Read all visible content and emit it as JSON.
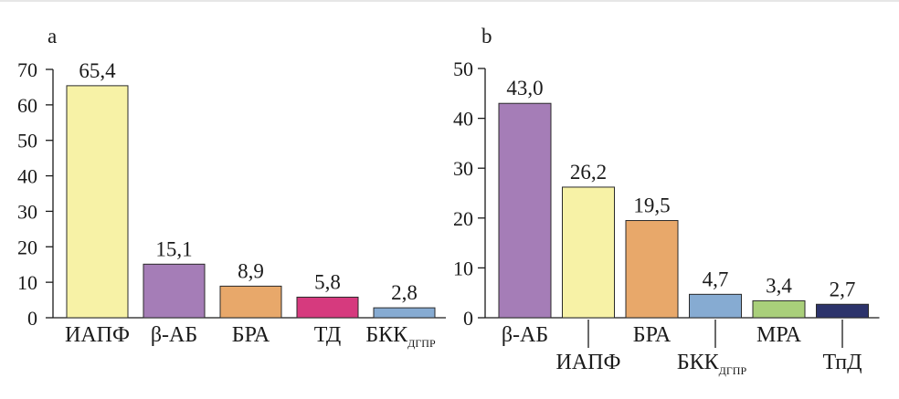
{
  "chart_data": [
    {
      "type": "bar",
      "panel": "a",
      "categories": [
        "ИАПФ",
        "β-АБ",
        "БРА",
        "ТД",
        "БКК"
      ],
      "category_subscripts": [
        "",
        "",
        "",
        "",
        "ДГПР"
      ],
      "values": [
        65.4,
        15.1,
        8.9,
        5.8,
        2.8
      ],
      "value_labels": [
        "65,4",
        "15,1",
        "8,9",
        "5,8",
        "2,8"
      ],
      "colors": [
        "#f7f2a6",
        "#a57db7",
        "#e8a86a",
        "#d63a7e",
        "#86abd2"
      ],
      "ylim": [
        0,
        70
      ],
      "yticks": [
        0,
        10,
        20,
        30,
        40,
        50,
        60,
        70
      ],
      "grid": false
    },
    {
      "type": "bar",
      "panel": "b",
      "categories": [
        "β-АБ",
        "ИАПФ",
        "БРА",
        "БКК",
        "МРА",
        "ТпД"
      ],
      "category_subscripts": [
        "",
        "",
        "",
        "ДГПР",
        "",
        ""
      ],
      "values": [
        43.0,
        26.2,
        19.5,
        4.7,
        3.4,
        2.7
      ],
      "value_labels": [
        "43,0",
        "26,2",
        "19,5",
        "4,7",
        "3,4",
        "2,7"
      ],
      "colors": [
        "#a57db7",
        "#f7f2a6",
        "#e8a86a",
        "#86abd2",
        "#a9cf7a",
        "#2c336b"
      ],
      "ylim": [
        0,
        50
      ],
      "yticks": [
        0,
        10,
        20,
        30,
        40,
        50
      ],
      "grid": false
    }
  ]
}
